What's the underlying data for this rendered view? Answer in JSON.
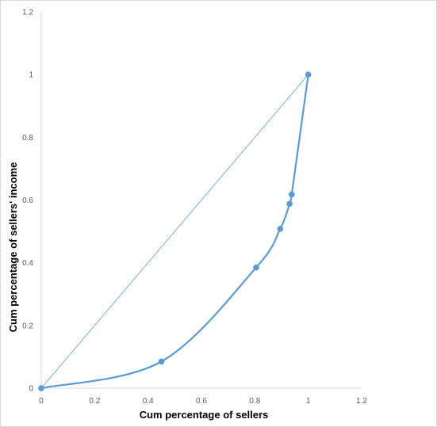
{
  "chart_data": {
    "type": "scatter",
    "title": "",
    "xlabel": "Cum percentage of sellers",
    "ylabel": "Cum percentage of sellers' income",
    "xlim": [
      0,
      1.2
    ],
    "ylim": [
      0,
      1.2
    ],
    "x_ticks": [
      "0",
      "0.2",
      "0.4",
      "0.6",
      "0.8",
      "1",
      "1.2"
    ],
    "y_ticks": [
      "0",
      "0.2",
      "0.4",
      "0.6",
      "0.8",
      "1",
      "1.2"
    ],
    "grid": false,
    "legend": "none",
    "series": [
      {
        "style": "smooth-line-with-markers",
        "color": "#5b9bd5",
        "x": [
          0,
          0.45,
          0.805,
          0.895,
          0.93,
          0.938,
          1.0
        ],
        "y": [
          0,
          0.085,
          0.385,
          0.508,
          0.588,
          0.618,
          1.0
        ]
      },
      {
        "style": "thin-line",
        "color": "#5b9bd5",
        "x": [
          0,
          1.0
        ],
        "y": [
          0,
          1.0
        ]
      }
    ]
  }
}
